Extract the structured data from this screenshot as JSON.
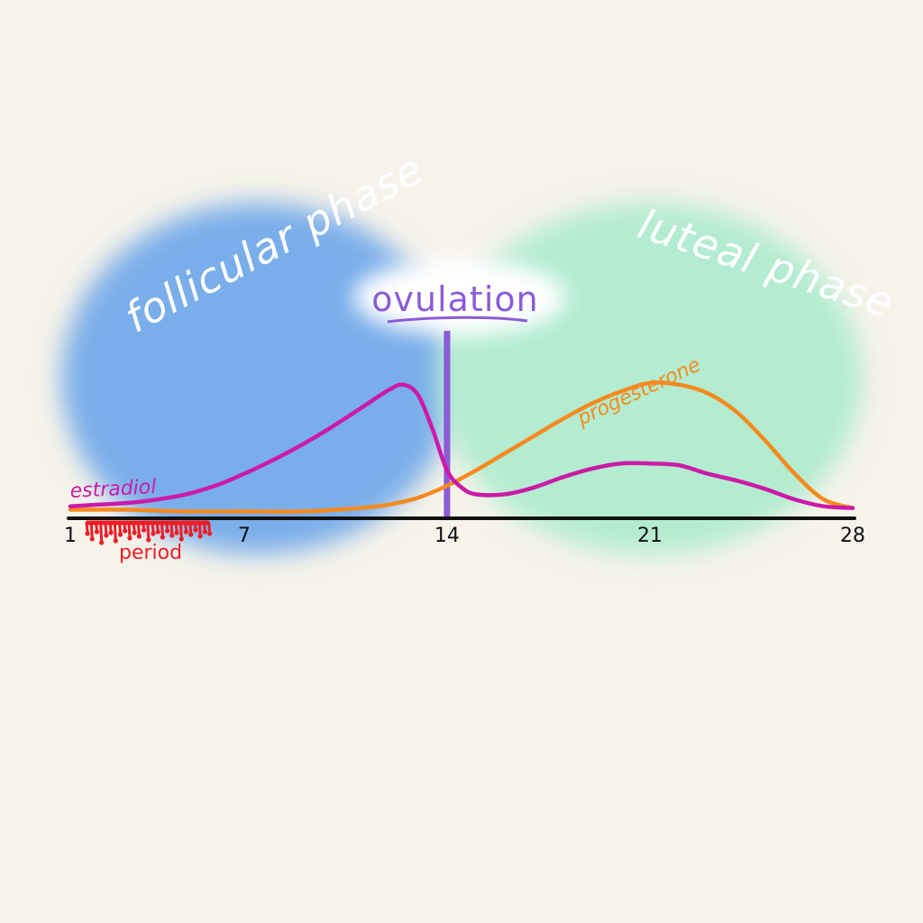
{
  "chart_data": {
    "type": "line",
    "x_ticks": [
      1,
      7,
      14,
      21,
      28
    ],
    "xlim": [
      1,
      28
    ],
    "ylim": [
      0,
      1
    ],
    "regions": [
      {
        "name": "follicular phase",
        "from": 1,
        "to": 14,
        "color": "#7aaeea"
      },
      {
        "name": "luteal phase",
        "from": 14,
        "to": 28,
        "color": "#b3ecd0"
      }
    ],
    "marker": {
      "label": "ovulation",
      "x": 14,
      "color": "#8b5cd6"
    },
    "period": {
      "label": "period",
      "from": 1,
      "to": 5,
      "color": "#ee1c24"
    },
    "series": [
      {
        "name": "estradiol",
        "color": "#cc1aa8",
        "x": [
          1,
          2,
          3,
          4,
          5,
          6,
          7,
          8,
          9,
          10,
          11,
          12,
          12.5,
          13,
          13.5,
          14,
          14.5,
          15,
          16,
          17,
          18,
          19,
          20,
          21,
          22,
          23,
          24,
          25,
          26,
          27,
          28
        ],
        "y": [
          0.07,
          0.08,
          0.09,
          0.11,
          0.14,
          0.19,
          0.26,
          0.34,
          0.43,
          0.53,
          0.64,
          0.75,
          0.78,
          0.72,
          0.52,
          0.28,
          0.18,
          0.14,
          0.14,
          0.18,
          0.24,
          0.29,
          0.32,
          0.32,
          0.31,
          0.26,
          0.22,
          0.17,
          0.11,
          0.07,
          0.06
        ]
      },
      {
        "name": "progesterone",
        "color": "#f58a1f",
        "x": [
          1,
          3,
          5,
          7,
          9,
          11,
          12,
          13,
          14,
          15,
          16,
          17,
          18,
          19,
          20,
          21,
          22,
          23,
          24,
          25,
          26,
          27,
          28
        ],
        "y": [
          0.05,
          0.05,
          0.04,
          0.04,
          0.04,
          0.06,
          0.08,
          0.12,
          0.19,
          0.28,
          0.38,
          0.48,
          0.58,
          0.67,
          0.74,
          0.79,
          0.78,
          0.73,
          0.62,
          0.45,
          0.26,
          0.11,
          0.06
        ]
      }
    ]
  }
}
